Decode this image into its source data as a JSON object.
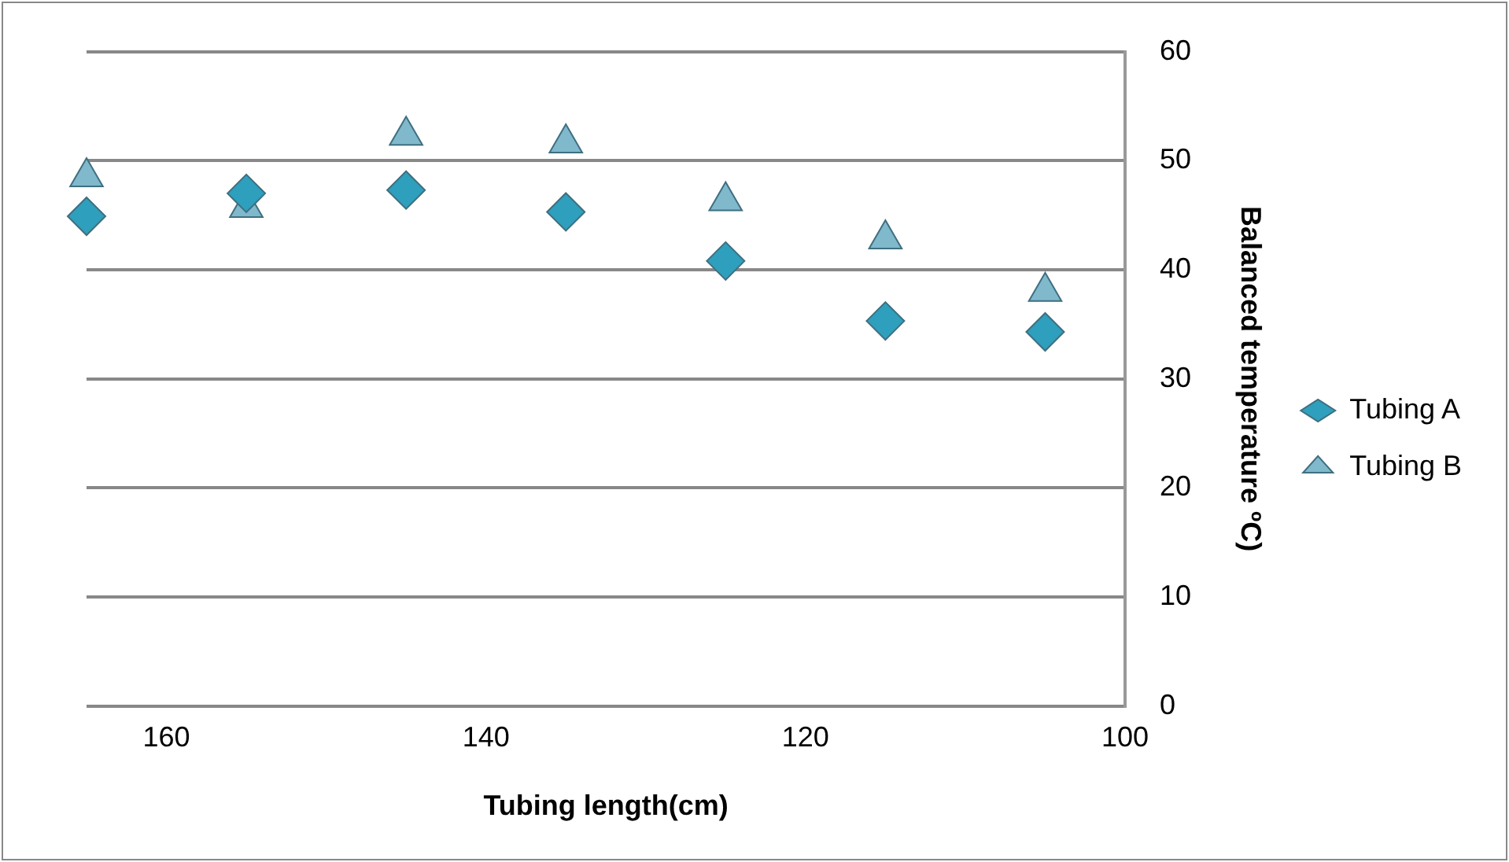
{
  "chart_data": {
    "type": "scatter",
    "xlabel": "Tubing length(cm)",
    "ylabel": "Balanced temperature ºC)",
    "x": [
      165,
      155,
      145,
      135,
      125,
      115,
      105
    ],
    "series": [
      {
        "name": "Tubing A",
        "color": "#2e9fbc",
        "marker": "diamond",
        "values": [
          44.9,
          47.0,
          47.3,
          45.3,
          40.8,
          35.3,
          34.3
        ]
      },
      {
        "name": "Tubing B",
        "color": "#80b8cc",
        "marker": "triangle",
        "values": [
          48.5,
          45.7,
          52.3,
          51.6,
          46.3,
          42.8,
          38.0
        ]
      }
    ],
    "xlim": [
      165,
      100
    ],
    "xticks": [
      160,
      140,
      120,
      100
    ],
    "ylim": [
      0,
      60
    ],
    "yticks": [
      0,
      10,
      20,
      30,
      40,
      50,
      60
    ],
    "grid": "y",
    "legend": "right"
  }
}
